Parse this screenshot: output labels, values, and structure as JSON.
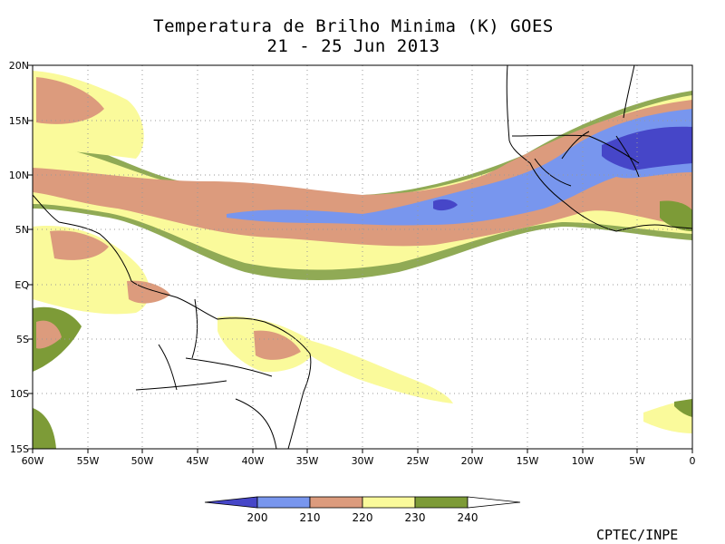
{
  "title": "Temperatura de Brilho Minima (K) GOES",
  "subtitle": "21 - 25 Jun 2013",
  "credit": "CPTEC/INPE",
  "map": {
    "lat_labels": [
      "20N",
      "15N",
      "10N",
      "5N",
      "EQ",
      "5S",
      "10S",
      "15S"
    ],
    "lon_labels": [
      "60W",
      "55W",
      "50W",
      "45W",
      "40W",
      "35W",
      "30W",
      "25W",
      "20W",
      "15W",
      "10W",
      "5W",
      "0"
    ],
    "lat_range": [
      -15,
      20
    ],
    "lon_range": [
      -60,
      0
    ]
  },
  "legend": {
    "ticks": [
      "200",
      "210",
      "220",
      "230",
      "240"
    ],
    "bins": [
      {
        "label": "< 200",
        "color": "#4646c8"
      },
      {
        "label": "200-210",
        "color": "#7896ee"
      },
      {
        "label": "210-220",
        "color": "#dc9b7d"
      },
      {
        "label": "220-230",
        "color": "#fafa9b"
      },
      {
        "label": "230-240",
        "color": "#7d9b37"
      },
      {
        "label": "> 240",
        "color": "#ffffff"
      }
    ]
  }
}
